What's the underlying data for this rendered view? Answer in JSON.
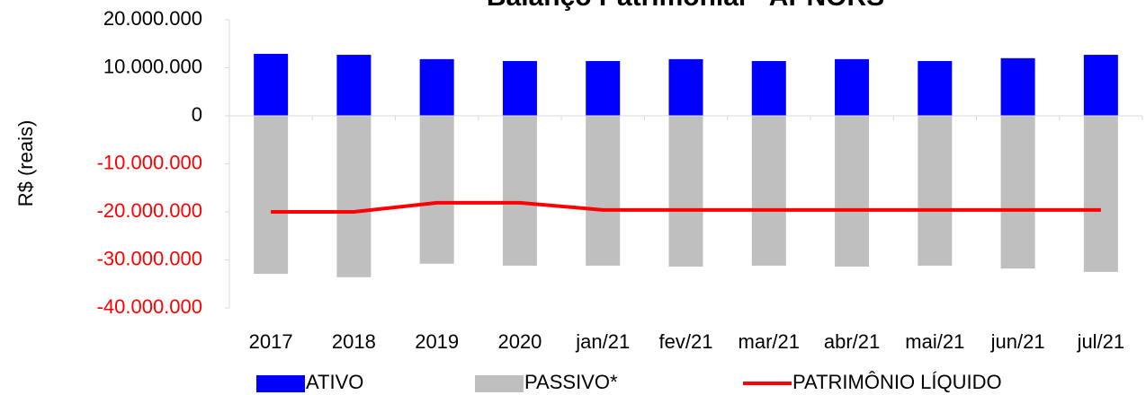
{
  "chart_data": {
    "type": "bar_line",
    "title": "Balanço Patrimonial - APNORS",
    "y_label": "R$ (reais)",
    "categories": [
      "2017",
      "2018",
      "2019",
      "2020",
      "jan/21",
      "fev/21",
      "mar/21",
      "abr/21",
      "mai/21",
      "jun/21",
      "jul/21"
    ],
    "series": [
      {
        "name": "ATIVO",
        "type": "bar",
        "color": "#0000ff",
        "values": [
          12900000,
          12700000,
          11800000,
          11400000,
          11400000,
          11800000,
          11400000,
          11800000,
          11400000,
          12000000,
          12700000
        ]
      },
      {
        "name": "PASSIVO*",
        "type": "bar",
        "color": "#bfbfbf",
        "values": [
          -32900000,
          -33600000,
          -30800000,
          -31200000,
          -31200000,
          -31400000,
          -31200000,
          -31400000,
          -31200000,
          -31800000,
          -32500000
        ]
      },
      {
        "name": "PATRIMÔNIO LÍQUIDO",
        "type": "line",
        "color": "#ff0000",
        "values": [
          -20000000,
          -20000000,
          -18100000,
          -18100000,
          -19600000,
          -19600000,
          -19600000,
          -19600000,
          -19600000,
          -19600000,
          -19600000
        ]
      }
    ],
    "ylim": [
      -40000000,
      20000000
    ],
    "yticks": [
      {
        "value": -40000000,
        "label": "-40.000.000"
      },
      {
        "value": -30000000,
        "label": "-30.000.000"
      },
      {
        "value": -20000000,
        "label": "-20.000.000"
      },
      {
        "value": -10000000,
        "label": "-10.000.000"
      },
      0,
      {
        "value": 10000000,
        "label": "10.000.000"
      },
      {
        "value": 20000000,
        "label": "20.000.000"
      }
    ],
    "legend": "bottom"
  }
}
